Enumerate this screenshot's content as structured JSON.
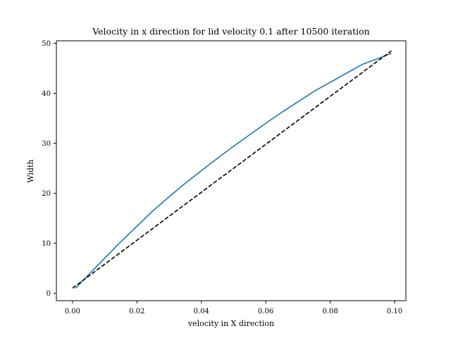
{
  "chart_data": {
    "type": "line",
    "title": "Velocity in x direction for lid velocity 0.1 after 10500 iteration",
    "xlabel": "velocity in X direction",
    "ylabel": "Width",
    "xlim": [
      -0.005,
      0.1035
    ],
    "ylim": [
      -1.5,
      50.5
    ],
    "xticks": [
      0.0,
      0.02,
      0.04,
      0.06,
      0.08,
      0.1
    ],
    "xtick_labels": [
      "0.00",
      "0.02",
      "0.04",
      "0.06",
      "0.08",
      "0.10"
    ],
    "yticks": [
      0,
      10,
      20,
      30,
      40,
      50
    ],
    "ytick_labels": [
      "0",
      "10",
      "20",
      "30",
      "40",
      "50"
    ],
    "grid": false,
    "legend": "none",
    "series": [
      {
        "style": "solid",
        "color": "#1f77b4",
        "x": [
          0.001,
          0.005,
          0.01,
          0.015,
          0.02,
          0.025,
          0.03,
          0.035,
          0.04,
          0.045,
          0.05,
          0.055,
          0.06,
          0.065,
          0.07,
          0.075,
          0.08,
          0.085,
          0.09,
          0.095,
          0.099
        ],
        "y": [
          1.0,
          3.7,
          7.0,
          10.3,
          13.4,
          16.5,
          19.3,
          22.0,
          24.5,
          27.0,
          29.4,
          31.7,
          34.0,
          36.2,
          38.3,
          40.4,
          42.2,
          44.0,
          45.8,
          47.0,
          48.0
        ]
      },
      {
        "style": "dashed",
        "color": "#000000",
        "x": [
          0.0,
          0.099
        ],
        "y": [
          1.0,
          48.5
        ]
      }
    ]
  }
}
